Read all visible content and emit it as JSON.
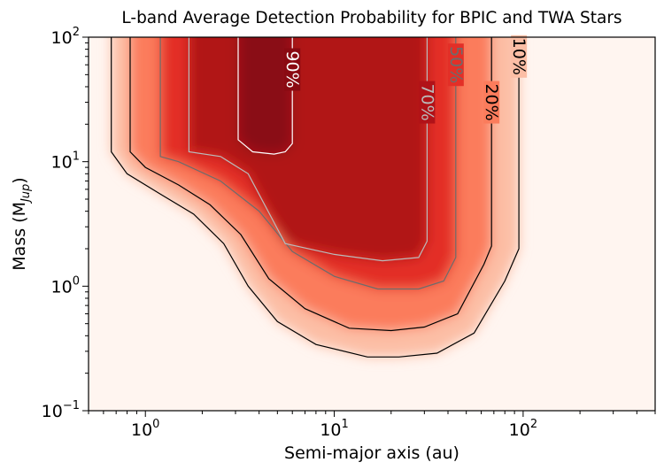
{
  "chart_data": {
    "type": "heatmap",
    "title": "L-band Average Detection Probability for BPIC and TWA Stars",
    "xlabel": "Semi-major axis (au)",
    "ylabel_base": "Mass (M",
    "ylabel_sub": "Jup",
    "ylabel_end": ")",
    "x_scale": "log",
    "y_scale": "log",
    "xlim": [
      0.5,
      500
    ],
    "ylim": [
      0.1,
      100
    ],
    "x_ticks": [
      {
        "value": 1,
        "base": "10",
        "exp": "0"
      },
      {
        "value": 10,
        "base": "10",
        "exp": "1"
      },
      {
        "value": 100,
        "base": "10",
        "exp": "2"
      }
    ],
    "y_ticks": [
      {
        "value": 0.1,
        "base": "10",
        "exp": "−1"
      },
      {
        "value": 1,
        "base": "10",
        "exp": "0"
      },
      {
        "value": 10,
        "base": "10",
        "exp": "1"
      },
      {
        "value": 100,
        "base": "10",
        "exp": "2"
      }
    ],
    "colormap": "Reds",
    "value_range": [
      0,
      1
    ],
    "contours": [
      {
        "level": 0.1,
        "label": "10%",
        "color": "#000000",
        "points": [
          [
            0.66,
            100
          ],
          [
            0.66,
            12
          ],
          [
            0.8,
            8
          ],
          [
            1.2,
            5.5
          ],
          [
            1.8,
            3.8
          ],
          [
            2.6,
            2.2
          ],
          [
            3.5,
            1.0
          ],
          [
            5,
            0.52
          ],
          [
            8,
            0.34
          ],
          [
            15,
            0.27
          ],
          [
            22,
            0.27
          ],
          [
            35,
            0.29
          ],
          [
            55,
            0.42
          ],
          [
            80,
            1.1
          ],
          [
            95,
            2.0
          ],
          [
            95,
            100
          ]
        ],
        "label_at": [
          95,
          70
        ]
      },
      {
        "level": 0.2,
        "label": "20%",
        "color": "#000000",
        "points": [
          [
            0.83,
            100
          ],
          [
            0.83,
            12
          ],
          [
            1.0,
            9
          ],
          [
            1.5,
            6.5
          ],
          [
            2.2,
            4.5
          ],
          [
            3.2,
            2.6
          ],
          [
            4.5,
            1.15
          ],
          [
            7,
            0.66
          ],
          [
            12,
            0.46
          ],
          [
            20,
            0.44
          ],
          [
            30,
            0.47
          ],
          [
            45,
            0.6
          ],
          [
            62,
            1.5
          ],
          [
            68,
            2.1
          ],
          [
            68,
            100
          ]
        ],
        "label_at": [
          68,
          30
        ]
      },
      {
        "level": 0.5,
        "label": "50%",
        "color": "#6c6c6c",
        "points": [
          [
            1.2,
            100
          ],
          [
            1.2,
            11
          ],
          [
            1.5,
            10
          ],
          [
            2.5,
            7
          ],
          [
            4,
            4
          ],
          [
            6,
            1.9
          ],
          [
            10,
            1.2
          ],
          [
            17,
            0.95
          ],
          [
            28,
            0.95
          ],
          [
            38,
            1.1
          ],
          [
            44,
            1.7
          ],
          [
            44,
            100
          ]
        ],
        "label_at": [
          44,
          60
        ]
      },
      {
        "level": 0.7,
        "label": "70%",
        "color": "#bbbbbb",
        "points": [
          [
            1.7,
            100
          ],
          [
            1.7,
            12
          ],
          [
            2.5,
            11
          ],
          [
            3.5,
            8
          ],
          [
            5.5,
            2.2
          ],
          [
            10,
            1.8
          ],
          [
            18,
            1.6
          ],
          [
            28,
            1.7
          ],
          [
            31,
            2.3
          ],
          [
            31,
            100
          ]
        ],
        "label_at": [
          31,
          30
        ]
      },
      {
        "level": 0.9,
        "label": "90%",
        "color": "#ffffff",
        "points": [
          [
            3.1,
            100
          ],
          [
            3.1,
            15
          ],
          [
            3.7,
            12
          ],
          [
            4.8,
            11.5
          ],
          [
            5.5,
            12
          ],
          [
            6,
            14
          ],
          [
            6,
            100
          ]
        ],
        "label_at": [
          6,
          55
        ]
      }
    ]
  }
}
